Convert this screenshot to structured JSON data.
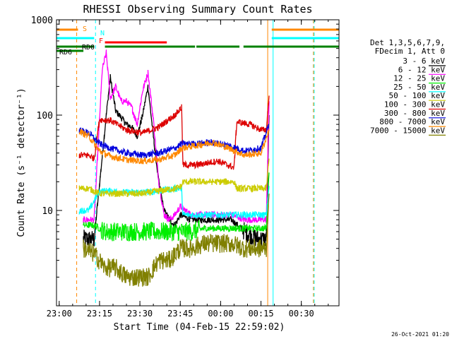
{
  "chart_data": {
    "type": "line",
    "title": "RHESSI Observing Summary Count Rates",
    "xlabel": "Start Time (04-Feb-15 22:59:02)",
    "ylabel": "Count Rate (s⁻¹ detector⁻¹)",
    "yscale": "log",
    "ylim": [
      1,
      1000
    ],
    "xlim": [
      0,
      105
    ],
    "x_unit": "minutes after 04-Feb-15 22:59:02",
    "x_ticks": [
      {
        "x": 1,
        "label": "23:00"
      },
      {
        "x": 16,
        "label": "23:15"
      },
      {
        "x": 31,
        "label": "23:30"
      },
      {
        "x": 46,
        "label": "23:45"
      },
      {
        "x": 61,
        "label": "00:00"
      },
      {
        "x": 76,
        "label": "00:15"
      },
      {
        "x": 91,
        "label": "00:30"
      }
    ],
    "y_ticks": [
      {
        "y": 10,
        "label": "10"
      },
      {
        "y": 100,
        "label": "100"
      },
      {
        "y": 1000,
        "label": "1000"
      }
    ],
    "legend": {
      "placement": "right",
      "header": [
        "Det 1,3,5,6,7,9,",
        "FDecim 1, Att 0"
      ],
      "entries": [
        {
          "label": "3 - 6 keV",
          "color": "#000000"
        },
        {
          "label": "6 - 12 keV",
          "color": "#ff00ff"
        },
        {
          "label": "12 - 25 keV",
          "color": "#00ee00"
        },
        {
          "label": "25 - 50 keV",
          "color": "#00ffff"
        },
        {
          "label": "50 - 100 keV",
          "color": "#cccc00"
        },
        {
          "label": "100 - 300 keV",
          "color": "#dd0000"
        },
        {
          "label": "300 - 800 keV",
          "color": "#0000dd"
        },
        {
          "label": "800 - 7000 keV",
          "color": "#ff8800"
        },
        {
          "label": "7000 - 15000 keV",
          "color": "#808000"
        }
      ]
    },
    "flag_labels": {
      "S": "S",
      "N": "N",
      "F": "F",
      "RD0": "RD0",
      "RD6": "RD6"
    },
    "flags": {
      "S": {
        "color": "#ff8800",
        "segments": [
          [
            0,
            8
          ]
        ]
      },
      "N": {
        "color": "#00ffff",
        "segments": [
          [
            0,
            14
          ]
        ]
      },
      "F": {
        "color": "#ff0000",
        "segments": [
          [
            18,
            41
          ]
        ]
      },
      "RD0": {
        "color": "#008000",
        "segments": [
          [
            0,
            14
          ],
          [
            18,
            51.5
          ],
          [
            52,
            68
          ],
          [
            69.5,
            105
          ]
        ]
      },
      "RD6": {
        "color": "#008000",
        "segments": [
          [
            0,
            10
          ]
        ]
      }
    },
    "flag_levels": {
      "S": 2,
      "N": 4,
      "F": 5,
      "RD0": 6,
      "RD6": 7
    },
    "extra_top_bars": [
      {
        "color": "#ff8800",
        "x": [
          80,
          105
        ],
        "level": 2
      },
      {
        "color": "#00ffff",
        "x": [
          80,
          105
        ],
        "level": 4
      }
    ],
    "vlines": [
      {
        "x": 0,
        "color": "#00ffff",
        "dash": false
      },
      {
        "x": 7.5,
        "color": "#ff8800",
        "dash": true
      },
      {
        "x": 14.5,
        "color": "#00ffff",
        "dash": true
      },
      {
        "x": 78.5,
        "color": "#ff8800",
        "dash": false
      },
      {
        "x": 80.5,
        "color": "#00ffff",
        "dash": false
      },
      {
        "x": 95.5,
        "color": "#ff8800",
        "dash": true
      },
      {
        "x": 95.8,
        "color": "#00ffff",
        "dash": true
      }
    ],
    "series": [
      {
        "name": "3 - 6 keV",
        "color": "#000000",
        "x": [
          10,
          14,
          18.5,
          20,
          22,
          24,
          26,
          28,
          30,
          32,
          34,
          36,
          38,
          40,
          42,
          44,
          46,
          50,
          55,
          60,
          65,
          70,
          75,
          78,
          79
        ],
        "y": [
          5,
          5,
          100,
          250,
          110,
          95,
          80,
          75,
          60,
          100,
          200,
          60,
          20,
          10,
          8,
          7,
          9,
          8,
          8,
          8,
          8,
          6,
          5,
          5,
          100
        ]
      },
      {
        "name": "6 - 12 keV",
        "color": "#ff00ff",
        "x": [
          10,
          14,
          17,
          18.5,
          20,
          22,
          24,
          26,
          28,
          30,
          32,
          34,
          36,
          38,
          40,
          42,
          44,
          46,
          50,
          55,
          60,
          65,
          70,
          75,
          78,
          79
        ],
        "y": [
          8,
          8,
          300,
          450,
          150,
          200,
          140,
          140,
          120,
          80,
          180,
          280,
          90,
          20,
          9,
          8,
          9,
          11,
          9,
          9,
          9,
          9,
          8,
          8,
          8,
          140
        ]
      },
      {
        "name": "12 - 25 keV",
        "color": "#00ee00",
        "x": [
          10,
          14,
          18,
          22,
          26,
          30,
          34,
          38,
          42,
          46,
          50,
          55,
          60,
          65,
          70,
          75,
          78,
          79
        ],
        "y": [
          7,
          7,
          6,
          6,
          6,
          6,
          6,
          6,
          6,
          6,
          6,
          6.5,
          6.5,
          6.5,
          6.5,
          6.5,
          6.5,
          25
        ]
      },
      {
        "name": "25 - 50 keV",
        "color": "#00ffff",
        "x": [
          8.5,
          12,
          16,
          20,
          26,
          32,
          38,
          44,
          46.5,
          47,
          52,
          60,
          66,
          67,
          72,
          78,
          79
        ],
        "y": [
          10,
          10,
          16,
          16,
          15.5,
          15.5,
          16,
          17,
          17,
          9,
          9,
          9,
          9,
          9,
          9,
          9,
          18
        ]
      },
      {
        "name": "50 - 100 keV",
        "color": "#cccc00",
        "x": [
          8.5,
          12,
          16,
          20,
          26,
          32,
          38,
          44,
          46.5,
          47,
          52,
          60,
          66,
          67,
          72,
          78,
          79
        ],
        "y": [
          17,
          17,
          15,
          15,
          15,
          15,
          16,
          17,
          18,
          20,
          20,
          20,
          20,
          17,
          17,
          17,
          35
        ]
      },
      {
        "name": "100 - 300 keV",
        "color": "#dd0000",
        "x": [
          8.5,
          12,
          14,
          16,
          20,
          26,
          32,
          38,
          44,
          46.5,
          47,
          52,
          60,
          66,
          67,
          72,
          76,
          78,
          79
        ],
        "y": [
          38,
          38,
          35,
          90,
          88,
          70,
          65,
          75,
          100,
          120,
          30,
          30,
          33,
          28,
          85,
          80,
          70,
          70,
          160
        ]
      },
      {
        "name": "300 - 800 keV",
        "color": "#0000dd",
        "x": [
          8.5,
          12,
          16,
          20,
          26,
          32,
          38,
          44,
          46.5,
          52,
          58,
          64,
          70,
          76,
          79
        ],
        "y": [
          70,
          65,
          50,
          45,
          40,
          38,
          40,
          45,
          50,
          50,
          52,
          48,
          42,
          45,
          80
        ]
      },
      {
        "name": "800 - 7000 keV",
        "color": "#ff8800",
        "x": [
          8.5,
          12,
          16,
          20,
          26,
          32,
          38,
          44,
          46.5,
          52,
          58,
          64,
          70,
          76,
          79
        ],
        "y": [
          68,
          60,
          42,
          37,
          34,
          33,
          34,
          38,
          45,
          48,
          52,
          45,
          38,
          40,
          70
        ]
      },
      {
        "name": "7000 - 15000 keV",
        "color": "#808000",
        "x": [
          10,
          14,
          18,
          22,
          26,
          30,
          34,
          38,
          42,
          46,
          50,
          55,
          60,
          65,
          70,
          75,
          78,
          79
        ],
        "y": [
          4,
          3.5,
          2.5,
          2.5,
          2,
          2,
          2,
          3,
          3,
          4,
          4,
          4.5,
          4.5,
          4.5,
          4,
          4,
          4,
          15
        ]
      }
    ]
  },
  "footer": {
    "timestamp": "26-Oct-2021 01:20"
  }
}
